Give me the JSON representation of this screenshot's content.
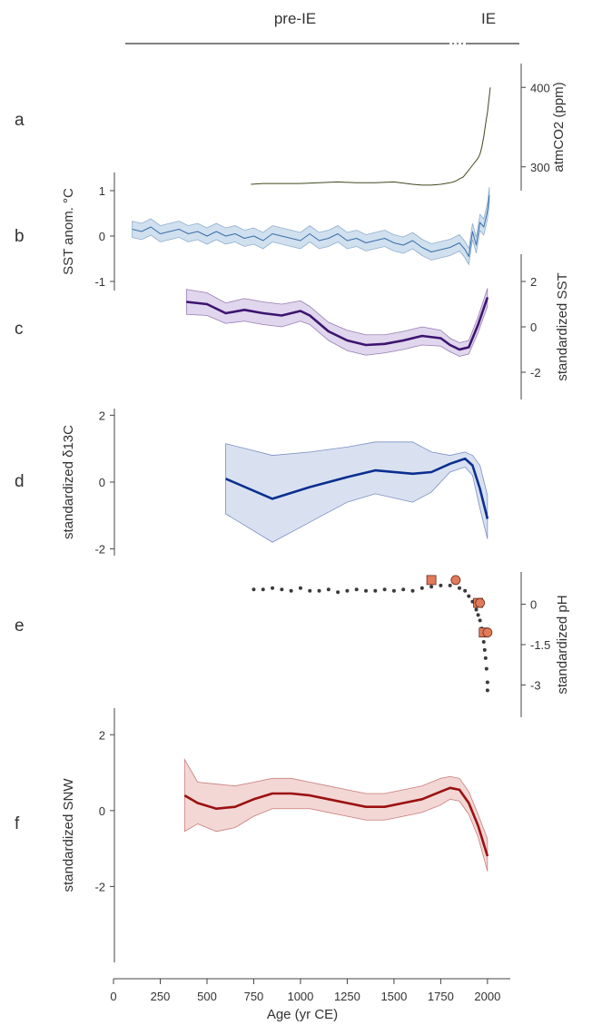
{
  "figure": {
    "eras": [
      {
        "label": "pre-IE",
        "from": 0,
        "to": 1880
      },
      {
        "label": "IE",
        "from": 1880,
        "to": 2030
      }
    ],
    "xaxis": {
      "label": "Age (yr CE)",
      "ticks": [
        "0",
        "250",
        "500",
        "750",
        "1000",
        "1250",
        "1500",
        "1750",
        "2000"
      ],
      "range": [
        0,
        2020
      ]
    }
  },
  "chart_data": [
    {
      "panel": "a",
      "type": "line",
      "ylabel": "atmCO2 (ppm)",
      "yaxis_side": "right",
      "yticks": [
        "300",
        "400"
      ],
      "ylim": [
        270,
        430
      ],
      "series": [
        {
          "color": "#3d4a1e",
          "x": [
            735,
            800,
            900,
            1000,
            1100,
            1200,
            1300,
            1400,
            1500,
            1600,
            1650,
            1700,
            1750,
            1800,
            1830,
            1850,
            1870,
            1900,
            1920,
            1940,
            1950,
            1960,
            1970,
            1980,
            1990,
            2000,
            2010,
            2015
          ],
          "y": [
            278,
            279,
            279,
            279,
            280,
            281,
            280,
            280,
            281,
            278,
            277,
            277,
            278,
            280,
            282,
            285,
            287,
            296,
            302,
            308,
            311,
            316,
            325,
            338,
            354,
            369,
            389,
            400
          ]
        }
      ]
    },
    {
      "panel": "b",
      "type": "area",
      "ylabel": "SST anom. °C",
      "yaxis_side": "left",
      "yticks": [
        "1",
        "0",
        "-1"
      ],
      "ylim": [
        -1.2,
        1.4
      ],
      "series": [
        {
          "color": "#3a6fa8",
          "band_color": "#a9c6e2",
          "x": [
            100,
            150,
            200,
            250,
            300,
            350,
            400,
            450,
            500,
            550,
            600,
            650,
            700,
            750,
            800,
            850,
            900,
            950,
            1000,
            1050,
            1100,
            1150,
            1200,
            1250,
            1300,
            1350,
            1400,
            1450,
            1500,
            1550,
            1600,
            1650,
            1700,
            1750,
            1800,
            1850,
            1880,
            1900,
            1920,
            1940,
            1960,
            1980,
            2000,
            2010
          ],
          "y": [
            0.15,
            0.1,
            0.2,
            0.05,
            0.1,
            0.15,
            0.05,
            0.1,
            0.0,
            0.1,
            0.0,
            0.05,
            -0.05,
            0.0,
            -0.1,
            0.05,
            0.0,
            -0.05,
            -0.1,
            0.05,
            -0.1,
            -0.05,
            0.05,
            -0.1,
            -0.05,
            -0.15,
            -0.1,
            -0.05,
            -0.15,
            -0.2,
            -0.1,
            -0.25,
            -0.35,
            -0.3,
            -0.25,
            -0.15,
            -0.3,
            -0.45,
            0.1,
            -0.2,
            0.3,
            0.2,
            0.55,
            0.9
          ],
          "band": 0.18
        }
      ]
    },
    {
      "panel": "c",
      "type": "line",
      "ylabel": "standardized SST",
      "yaxis_side": "right",
      "yticks": [
        "2",
        "0",
        "-2"
      ],
      "ylim": [
        -3.2,
        3.2
      ],
      "series": [
        {
          "color": "#3d1470",
          "band_color": "#c7b4de",
          "x": [
            390,
            500,
            600,
            700,
            800,
            900,
            1000,
            1050,
            1150,
            1250,
            1350,
            1450,
            1550,
            1650,
            1750,
            1800,
            1850,
            1900,
            1950,
            2000
          ],
          "y": [
            1.1,
            1.0,
            0.6,
            0.75,
            0.6,
            0.5,
            0.7,
            0.5,
            -0.2,
            -0.6,
            -0.8,
            -0.75,
            -0.6,
            -0.4,
            -0.5,
            -0.8,
            -1.0,
            -0.9,
            0.1,
            1.3
          ],
          "band": [
            0.55,
            0.5,
            0.45,
            0.5,
            0.5,
            0.5,
            0.45,
            0.4,
            0.4,
            0.45,
            0.45,
            0.4,
            0.4,
            0.4,
            0.35,
            0.3,
            0.3,
            0.3,
            0.35,
            0.4
          ]
        }
      ]
    },
    {
      "panel": "d",
      "type": "line",
      "ylabel": "standardized δ13C",
      "yaxis_side": "left",
      "yticks": [
        "2",
        "0",
        "-2"
      ],
      "ylim": [
        -2.2,
        2.2
      ],
      "series": [
        {
          "color": "#0b2f8f",
          "band_color": "#b9c8e6",
          "x": [
            600,
            850,
            1050,
            1250,
            1400,
            1600,
            1700,
            1800,
            1880,
            1920,
            1960,
            2000
          ],
          "y": [
            0.1,
            -0.5,
            -0.15,
            0.15,
            0.35,
            0.25,
            0.3,
            0.55,
            0.7,
            0.5,
            -0.2,
            -1.1
          ],
          "upper": [
            1.15,
            0.8,
            0.9,
            1.05,
            1.2,
            1.2,
            0.9,
            0.8,
            0.9,
            0.8,
            0.5,
            -0.4
          ],
          "lower": [
            -0.95,
            -1.8,
            -1.2,
            -0.6,
            -0.35,
            -0.6,
            -0.3,
            0.3,
            0.45,
            0.2,
            -0.8,
            -1.7
          ]
        }
      ]
    },
    {
      "panel": "e",
      "type": "scatter",
      "ylabel": "standardized pH",
      "yaxis_side": "right",
      "yticks": [
        "0",
        "-1.5",
        "-3"
      ],
      "ylim": [
        -4.2,
        1.2
      ],
      "series": [
        {
          "color": "#3a3a3a",
          "marker": "dot",
          "x": [
            750,
            800,
            850,
            900,
            950,
            1000,
            1050,
            1100,
            1150,
            1200,
            1250,
            1300,
            1350,
            1400,
            1450,
            1500,
            1550,
            1600,
            1650,
            1700,
            1750,
            1800,
            1850,
            1880,
            1900,
            1920,
            1940,
            1950,
            1960,
            1970,
            1975,
            1980,
            1985,
            1990,
            1995,
            2000,
            2000
          ],
          "y": [
            0.55,
            0.55,
            0.6,
            0.55,
            0.5,
            0.6,
            0.5,
            0.5,
            0.55,
            0.45,
            0.5,
            0.55,
            0.5,
            0.5,
            0.55,
            0.5,
            0.55,
            0.5,
            0.6,
            0.65,
            0.7,
            0.7,
            0.6,
            0.5,
            0.3,
            0.1,
            -0.2,
            -0.4,
            -0.6,
            -0.9,
            -1.1,
            -1.4,
            -1.7,
            -2.0,
            -2.4,
            -2.9,
            -3.2
          ]
        },
        {
          "color": "#e07b5a",
          "marker": "square",
          "x": [
            1700,
            1950,
            1980
          ],
          "y": [
            0.9,
            0.05,
            -1.05
          ]
        },
        {
          "color": "#e07b5a",
          "marker": "circle",
          "x": [
            1830,
            1960,
            2000
          ],
          "y": [
            0.9,
            0.05,
            -1.05
          ]
        }
      ]
    },
    {
      "panel": "f",
      "type": "line",
      "ylabel": "standardized SNW",
      "yaxis_side": "left",
      "yticks": [
        "2",
        "0",
        "-2"
      ],
      "ylim": [
        -4.0,
        2.7
      ],
      "series": [
        {
          "color": "#9b1010",
          "band_color": "#e8b7b2",
          "x": [
            380,
            450,
            550,
            650,
            750,
            850,
            950,
            1050,
            1150,
            1250,
            1350,
            1450,
            1550,
            1650,
            1750,
            1800,
            1850,
            1900,
            1950,
            2000
          ],
          "y": [
            0.4,
            0.2,
            0.05,
            0.1,
            0.3,
            0.45,
            0.45,
            0.4,
            0.3,
            0.2,
            0.1,
            0.1,
            0.2,
            0.3,
            0.5,
            0.6,
            0.55,
            0.2,
            -0.4,
            -1.2
          ],
          "upper": [
            1.35,
            0.75,
            0.7,
            0.65,
            0.75,
            0.85,
            0.85,
            0.75,
            0.65,
            0.55,
            0.45,
            0.45,
            0.55,
            0.65,
            0.85,
            0.9,
            0.85,
            0.5,
            -0.1,
            -0.75
          ],
          "lower": [
            -0.55,
            -0.35,
            -0.55,
            -0.45,
            -0.15,
            0.05,
            0.05,
            0.05,
            -0.05,
            -0.15,
            -0.25,
            -0.25,
            -0.15,
            -0.05,
            0.15,
            0.3,
            0.25,
            -0.1,
            -0.7,
            -1.6
          ]
        }
      ]
    }
  ]
}
